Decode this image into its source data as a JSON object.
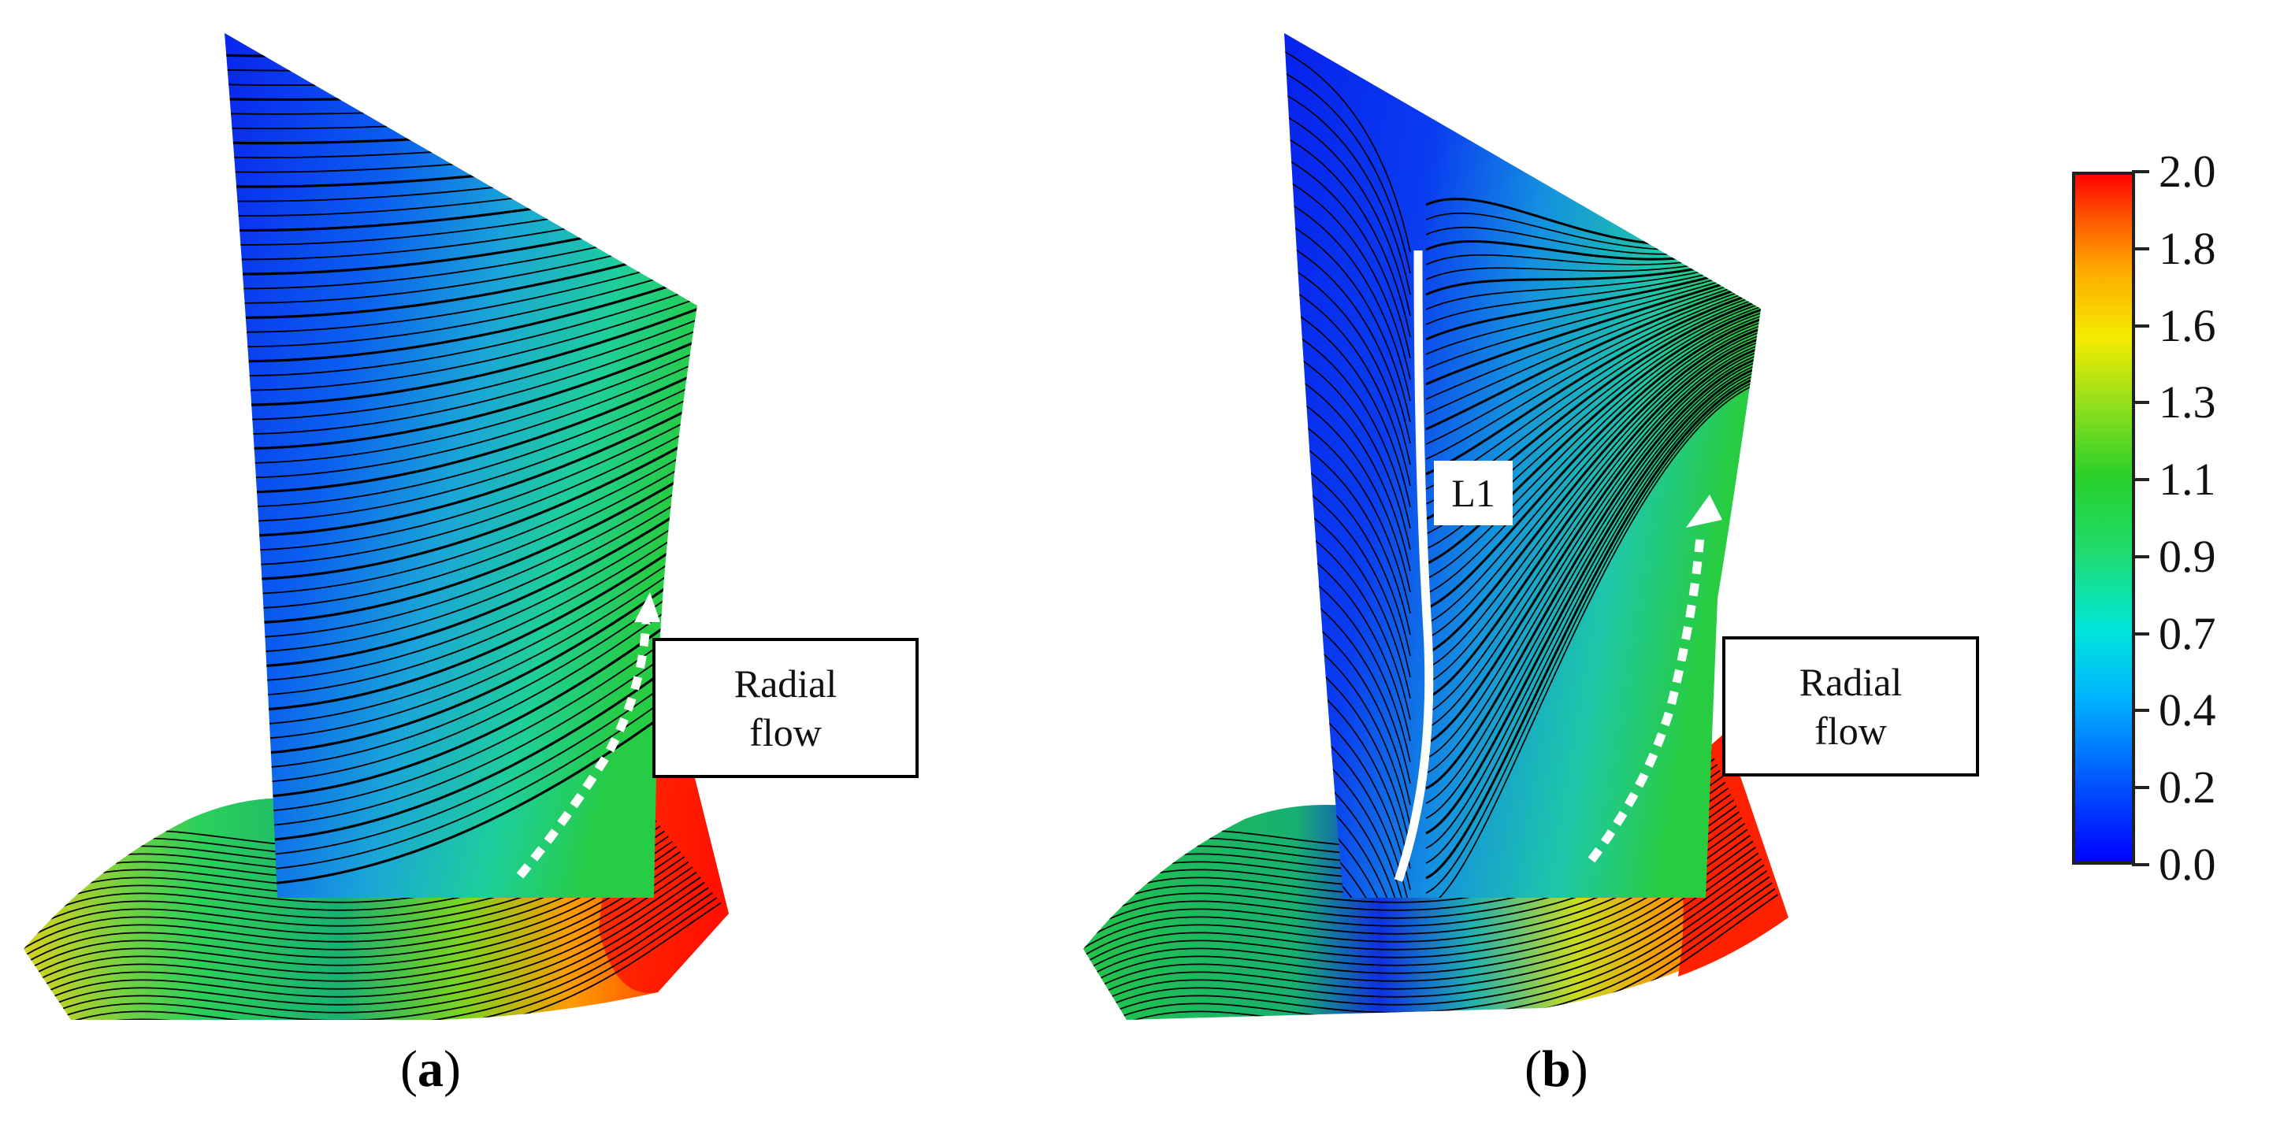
{
  "panels": [
    {
      "id": "a",
      "label_open": "(",
      "label_letter": "a",
      "label_close": ")",
      "callout_line1": "Radial",
      "callout_line2": "flow"
    },
    {
      "id": "b",
      "label_open": "(",
      "label_letter": "b",
      "label_close": ")",
      "callout_line1": "Radial",
      "callout_line2": "flow",
      "line_label": "L1"
    }
  ],
  "colorbar": {
    "ticks": [
      "2.0",
      "1.8",
      "1.6",
      "1.3",
      "1.1",
      "0.9",
      "0.7",
      "0.4",
      "0.2",
      "0.0"
    ],
    "min": 0.0,
    "max": 2.0,
    "colors": [
      "#0000ff",
      "#0066ff",
      "#00ccff",
      "#00e5cc",
      "#33dd55",
      "#22cc22",
      "#aadd22",
      "#ffee00",
      "#ffa000",
      "#ff3300",
      "#ff0000"
    ]
  },
  "surface_colors": {
    "low": "#0a2cf0",
    "low_mid": "#1a6ee8",
    "mid": "#1fc8c8",
    "mid_high": "#22cc33",
    "high_mid": "#e6e020",
    "high": "#ff8a00",
    "max": "#ff1a00",
    "streamline": "#000000",
    "marker": "#ffffff"
  }
}
